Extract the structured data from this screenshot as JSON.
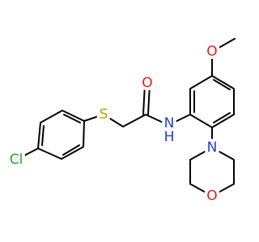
{
  "atoms": [
    {
      "label": "Cl"
    },
    {
      "label": "S"
    },
    {
      "label": "O"
    },
    {
      "label": "N"
    },
    {
      "label": "H"
    },
    {
      "label": "O"
    },
    {
      "label": "N"
    },
    {
      "label": "O"
    }
  ]
}
